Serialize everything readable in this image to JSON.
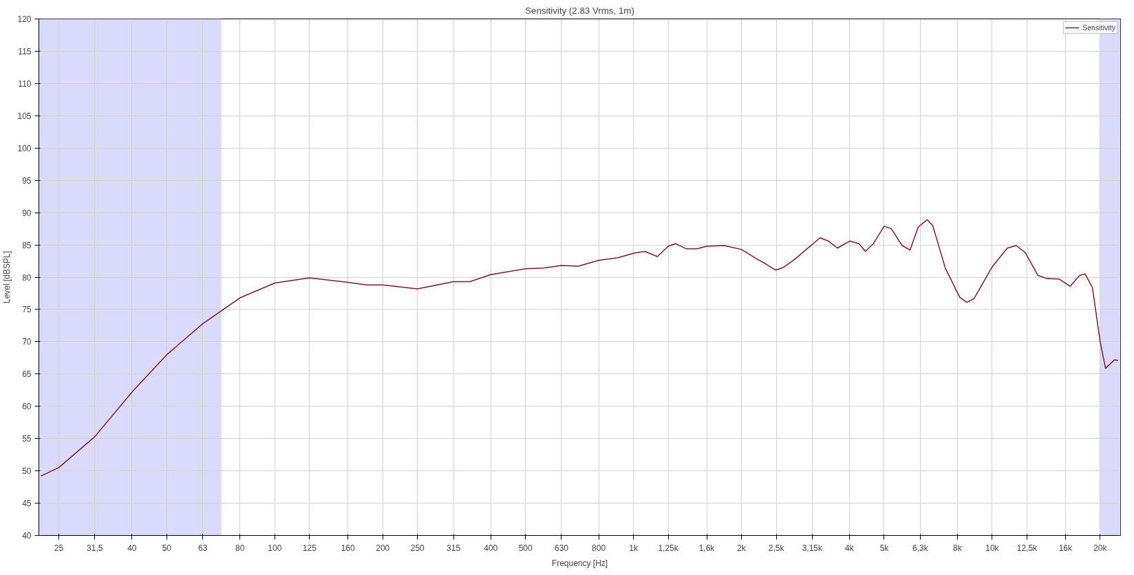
{
  "chart_data": {
    "type": "line",
    "title": "Sensitivity (2.83 Vrms, 1m)",
    "xlabel": "Frequency [Hz]",
    "ylabel": "Level [dBSPL]",
    "log": "x",
    "grid": true,
    "legend": "top right",
    "xlim": [
      22,
      22800
    ],
    "ylim": [
      40,
      120
    ],
    "xticks": [
      25,
      {
        "value": 31.5,
        "label": "31,5"
      },
      40,
      50,
      63,
      80,
      100,
      125,
      160,
      200,
      250,
      315,
      400,
      500,
      630,
      800,
      {
        "value": 1000,
        "label": "1k"
      },
      {
        "value": 1250,
        "label": "1,25k"
      },
      {
        "value": 1600,
        "label": "1,6k"
      },
      {
        "value": 2000,
        "label": "2k"
      },
      {
        "value": 2500,
        "label": "2,5k"
      },
      {
        "value": 3150,
        "label": "3,15k"
      },
      {
        "value": 4000,
        "label": "4k"
      },
      {
        "value": 5000,
        "label": "5k"
      },
      {
        "value": 6300,
        "label": "6,3k"
      },
      {
        "value": 8000,
        "label": "8k"
      },
      {
        "value": 10000,
        "label": "10k"
      },
      {
        "value": 12500,
        "label": "12,5k"
      },
      {
        "value": 16000,
        "label": "16k"
      },
      {
        "value": 20000,
        "label": "20k"
      }
    ],
    "yticks": [
      40,
      45,
      50,
      55,
      60,
      65,
      70,
      75,
      80,
      85,
      90,
      95,
      100,
      105,
      110,
      115,
      120
    ],
    "bands": [
      {
        "axis": "x",
        "from": 22,
        "to": 71,
        "color": "#dadafc"
      },
      {
        "axis": "x",
        "from": 20000,
        "to": 22800,
        "color": "#dadafc"
      }
    ],
    "series": [
      {
        "name": "Sensitivity",
        "color": "#7b1c2a",
        "x": [
          22.3,
          25,
          31.5,
          40,
          50,
          63,
          80,
          100,
          125,
          160,
          180,
          200,
          250,
          315,
          350,
          400,
          500,
          560,
          630,
          702,
          800,
          904,
          1000,
          1075,
          1166,
          1250,
          1309,
          1402,
          1503,
          1600,
          1788,
          2000,
          2226,
          2332,
          2487,
          2617,
          2805,
          3077,
          3313,
          3494,
          3702,
          4013,
          4252,
          4433,
          4664,
          5000,
          5234,
          5610,
          5903,
          6225,
          6595,
          6827,
          7402,
          8119,
          8502,
          8907,
          10000,
          11020,
          11670,
          12370,
          13400,
          14190,
          15390,
          16480,
          17550,
          18160,
          19030,
          20000,
          20700,
          21940,
          22450
        ],
        "values": [
          49.2,
          50.5,
          55.3,
          62.2,
          68.0,
          72.8,
          76.8,
          79.1,
          79.9,
          79.2,
          78.8,
          78.8,
          78.2,
          79.3,
          79.3,
          80.4,
          81.3,
          81.4,
          81.8,
          81.7,
          82.6,
          83.0,
          83.7,
          84.0,
          83.2,
          84.8,
          85.2,
          84.4,
          84.4,
          84.8,
          84.9,
          84.3,
          82.7,
          82.1,
          81.1,
          81.5,
          82.7,
          84.6,
          86.1,
          85.6,
          84.5,
          85.6,
          85.2,
          84.0,
          85.2,
          87.9,
          87.5,
          84.9,
          84.2,
          87.8,
          88.9,
          88.0,
          81.4,
          76.9,
          76.1,
          76.7,
          81.6,
          84.5,
          84.9,
          83.8,
          80.3,
          79.8,
          79.7,
          78.6,
          80.3,
          80.5,
          78.4,
          70.0,
          65.9,
          67.2,
          67.1
        ]
      }
    ]
  }
}
